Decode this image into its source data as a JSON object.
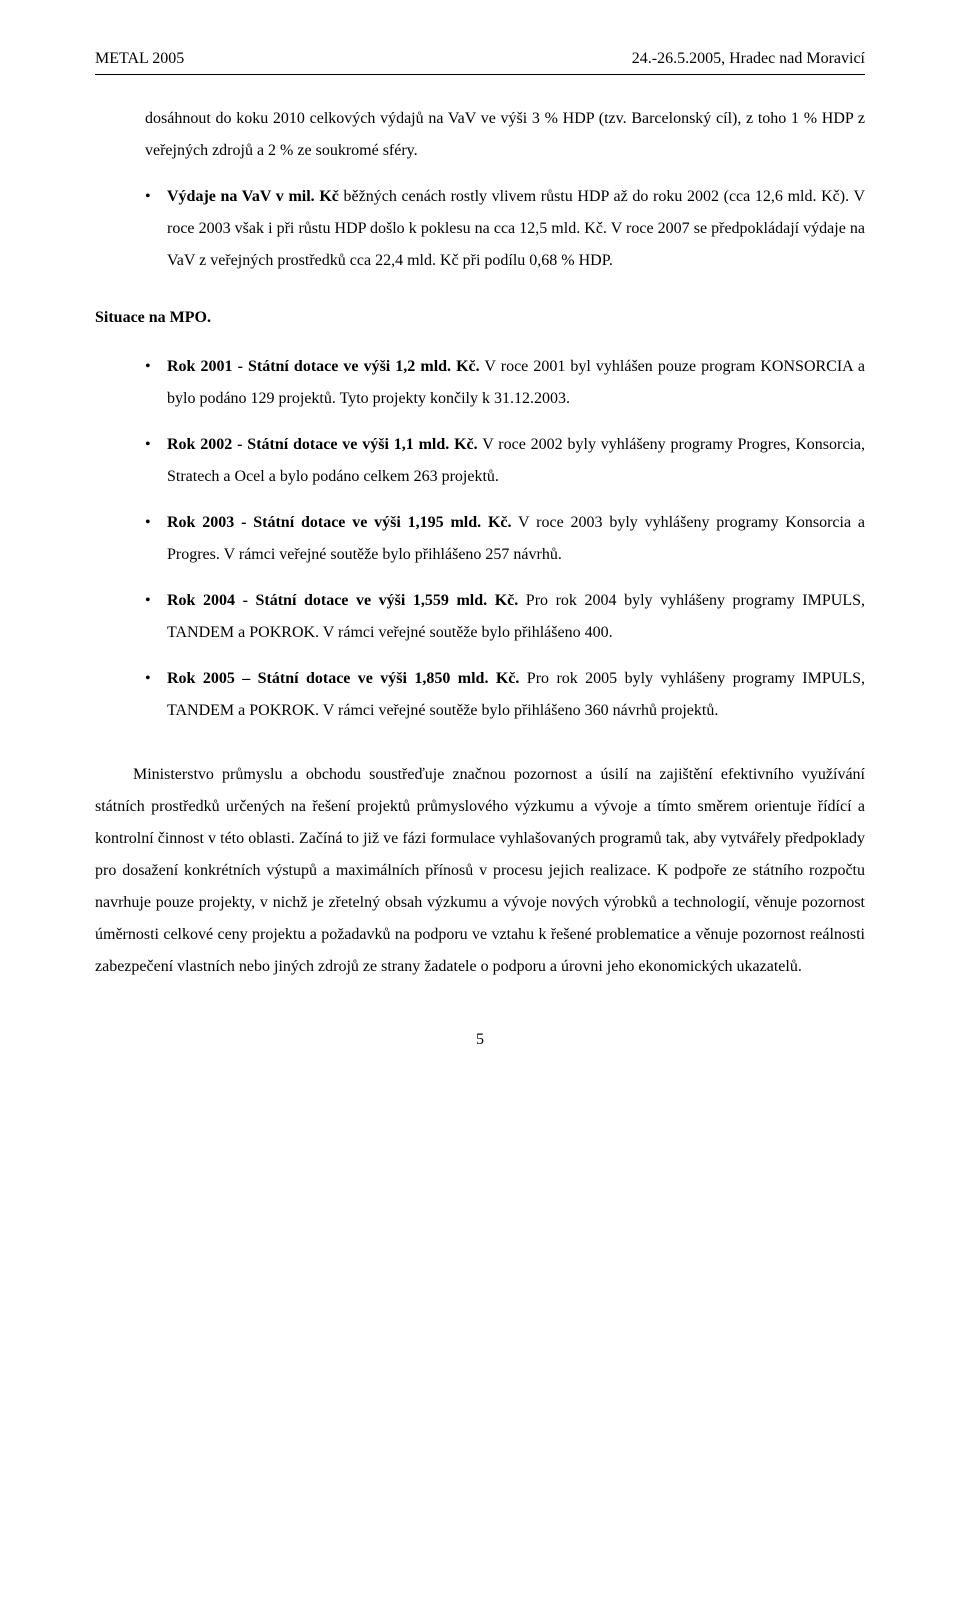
{
  "header": {
    "left": "METAL 2005",
    "right": "24.-26.5.2005, Hradec nad Moravicí"
  },
  "intro": {
    "line1": "dosáhnout do koku 2010 celkových výdajů na VaV ve výši 3 % HDP (tzv. Barcelonský cíl), z toho 1 % HDP z veřejných zdrojů a 2 % ze soukromé sféry."
  },
  "intro_bullets": [
    {
      "b1": "Výdaje na VaV v mil. Kč",
      "rest": " běžných cenách rostly vlivem růstu HDP až do roku 2002 (cca 12,6 mld. Kč). V roce 2003 však i při růstu HDP došlo k poklesu na cca 12,5 mld. Kč. V roce 2007 se předpokládají výdaje na VaV z veřejných prostředků cca 22,4 mld. Kč při podílu 0,68 % HDP."
    }
  ],
  "section_title": "Situace na MPO.",
  "mpo_bullets": [
    {
      "bold1": "Rok 2001 - Státní dotace ve výši 1,2 mld. Kč.",
      "rest": " V roce 2001 byl vyhlášen pouze program KONSORCIA a bylo podáno 129 projektů. Tyto projekty končily k 31.12.2003."
    },
    {
      "bold1": "Rok 2002 - Státní dotace ve výši 1,1 mld. Kč.",
      "rest": " V roce 2002 byly vyhlášeny programy Progres, Konsorcia, Stratech a Ocel a bylo podáno celkem 263 projektů."
    },
    {
      "bold1": "Rok 2003 - Státní dotace ve výši 1,195 mld. Kč.",
      "rest": " V roce 2003 byly vyhlášeny programy Konsorcia a Progres. V rámci veřejné soutěže bylo přihlášeno 257 návrhů."
    },
    {
      "bold1": "Rok 2004 - Státní dotace ve výši 1,559 mld. Kč.",
      "rest": " Pro rok 2004 byly vyhlášeny programy IMPULS, TANDEM a POKROK. V rámci veřejné soutěže bylo přihlášeno 400."
    },
    {
      "bold1": "Rok 2005 – Státní dotace ve výši 1,850 mld. Kč.",
      "rest": " Pro rok 2005 byly vyhlášeny programy IMPULS, TANDEM a POKROK. V rámci veřejné soutěže bylo přihlášeno 360 návrhů projektů."
    }
  ],
  "body_text": "Ministerstvo průmyslu a obchodu soustřeďuje značnou pozornost a úsilí na zajištění efektivního využívání státních prostředků určených na řešení projektů průmyslového výzkumu a vývoje a tímto směrem orientuje řídící a kontrolní činnost v této oblasti. Začíná to již ve fázi formulace vyhlašovaných programů tak, aby vytvářely předpoklady pro dosažení konkrétních výstupů a maximálních přínosů v procesu jejich realizace. K podpoře ze státního rozpočtu navrhuje pouze projekty, v nichž je zřetelný obsah výzkumu a vývoje nových výrobků a technologií, věnuje pozornost úměrnosti celkové ceny projektu a požadavků na podporu ve vztahu k řešené problematice a věnuje pozornost reálnosti zabezpečení vlastních nebo jiných zdrojů ze strany žadatele o podporu a úrovni jeho ekonomických ukazatelů.",
  "page_number": "5"
}
